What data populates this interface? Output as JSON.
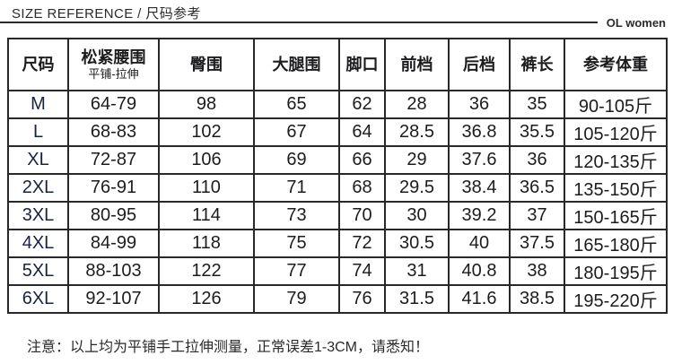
{
  "header": {
    "title": "SIZE REFERENCE / 尺码参考",
    "brand": "OL women"
  },
  "chart_data": {
    "type": "table",
    "title": "SIZE REFERENCE / 尺码参考",
    "columns": [
      {
        "label": "尺码"
      },
      {
        "label": "松紧腰围",
        "sublabel": "平铺-拉伸"
      },
      {
        "label": "臀围"
      },
      {
        "label": "大腿围"
      },
      {
        "label": "脚口"
      },
      {
        "label": "前档"
      },
      {
        "label": "后档"
      },
      {
        "label": "裤长"
      },
      {
        "label": "参考体重"
      }
    ],
    "rows": [
      [
        "M",
        "64-79",
        "98",
        "65",
        "62",
        "28",
        "36",
        "35",
        "90-105斤"
      ],
      [
        "L",
        "68-83",
        "102",
        "67",
        "64",
        "28.5",
        "36.8",
        "35.5",
        "105-120斤"
      ],
      [
        "XL",
        "72-87",
        "106",
        "69",
        "66",
        "29",
        "37.6",
        "36",
        "120-135斤"
      ],
      [
        "2XL",
        "76-91",
        "110",
        "71",
        "68",
        "29.5",
        "38.4",
        "36.5",
        "135-150斤"
      ],
      [
        "3XL",
        "80-95",
        "114",
        "73",
        "70",
        "30",
        "39.2",
        "37",
        "150-165斤"
      ],
      [
        "4XL",
        "84-99",
        "118",
        "75",
        "72",
        "30.5",
        "40",
        "37.5",
        "165-180斤"
      ],
      [
        "5XL",
        "88-103",
        "122",
        "77",
        "74",
        "31",
        "40.8",
        "38",
        "180-195斤"
      ],
      [
        "6XL",
        "92-107",
        "126",
        "79",
        "76",
        "31.5",
        "41.6",
        "38.5",
        "195-220斤"
      ]
    ]
  },
  "footer": {
    "note": "注意：以上均为平铺手工拉伸测量，正常误差1-3CM，请悉知！"
  },
  "colors": {
    "size_label_text": "#17233f",
    "body_text": "#1c1c1e",
    "border": "#282828",
    "rule_line": "#2b2b2b"
  }
}
